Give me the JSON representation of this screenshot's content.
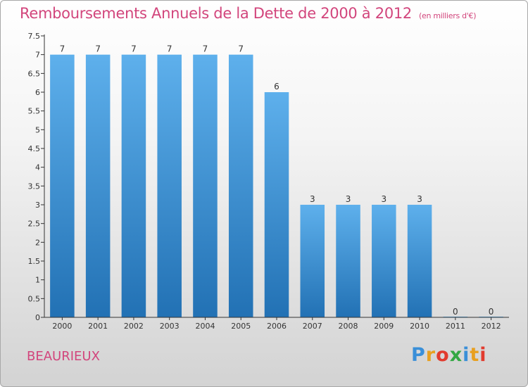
{
  "header": {
    "title": "Remboursements Annuels de la Dette de 2000 à 2012",
    "unit": "(en milliers d'€)"
  },
  "commune": "BEAURIEUX",
  "logo": {
    "text": "Proxiti",
    "letter_colors": [
      "#3a8fd8",
      "#e8a020",
      "#e23b2e",
      "#33a844",
      "#3a8fd8",
      "#e8a020",
      "#e23b2e"
    ]
  },
  "colors": {
    "title": "#d2457c",
    "bar_top": "#5eb0ec",
    "bar_bottom": "#2271b4",
    "axis": "#333333"
  },
  "chart_data": {
    "type": "bar",
    "categories": [
      "2000",
      "2001",
      "2002",
      "2003",
      "2004",
      "2005",
      "2006",
      "2007",
      "2008",
      "2009",
      "2010",
      "2011",
      "2012"
    ],
    "values": [
      7,
      7,
      7,
      7,
      7,
      7,
      6,
      3,
      3,
      3,
      3,
      0,
      0
    ],
    "ylim": [
      0,
      7.5
    ],
    "yticks": [
      "0",
      "0.5",
      "1",
      "1.5",
      "2",
      "2.5",
      "3",
      "3.5",
      "4",
      "4.5",
      "5",
      "5.5",
      "6",
      "6.5",
      "7",
      "7.5"
    ],
    "grid": false,
    "legend": "none"
  }
}
